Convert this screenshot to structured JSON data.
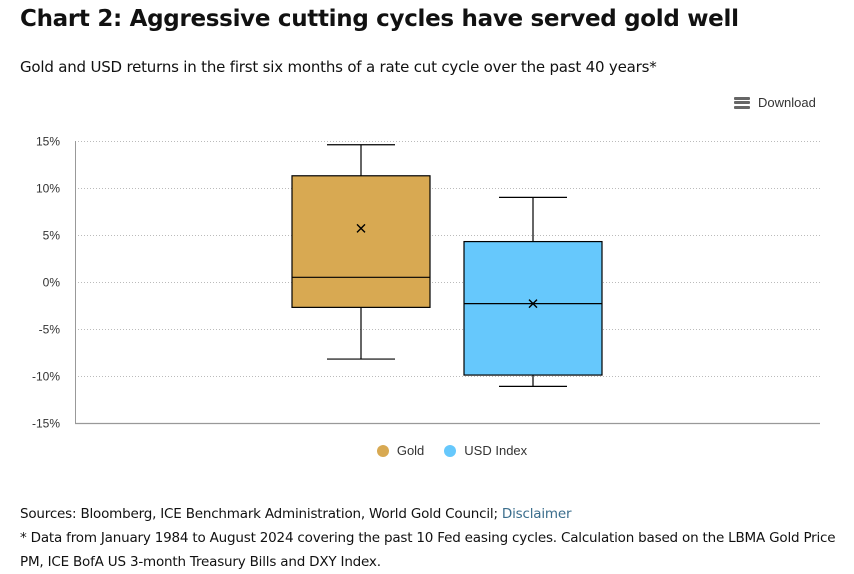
{
  "header": {
    "title": "Chart 2: Aggressive cutting cycles have served gold well",
    "subtitle": "Gold and USD returns in the first six months of a rate cut cycle over the past 40 years*"
  },
  "toolbar": {
    "download_label": "Download",
    "download_icon": "menu-icon"
  },
  "footer": {
    "sources_prefix": "Sources: Bloomberg, ICE Benchmark Administration, World Gold Council; ",
    "disclaimer_link": "Disclaimer",
    "note": "* Data from January 1984 to August 2024 covering the past 10 Fed easing cycles. Calculation based on the LBMA Gold Price PM, ICE BofA US 3-month Treasury Bills and DXY Index."
  },
  "chart_data": {
    "type": "boxplot",
    "title": "Chart 2: Aggressive cutting cycles have served gold well",
    "subtitle": "Gold and USD returns in the first six months of a rate cut cycle over the past 40 years*",
    "xlabel": "",
    "ylabel": "",
    "ylim": [
      -15,
      15
    ],
    "yticks": [
      15,
      10,
      5,
      0,
      -5,
      -10,
      -15
    ],
    "ytick_labels": [
      "15%",
      "10%",
      "5%",
      "0%",
      "-5%",
      "-10%",
      "-15%"
    ],
    "grid": true,
    "legend_position": "bottom-center",
    "series": [
      {
        "name": "Gold",
        "color": "#D8A952",
        "min": -8.2,
        "q1": -2.7,
        "median": 0.5,
        "q3": 11.3,
        "max": 14.6,
        "mean": 5.7
      },
      {
        "name": "USD Index",
        "color": "#66C8FC",
        "min": -11.1,
        "q1": -9.9,
        "median": -2.3,
        "q3": 4.3,
        "max": 9.0,
        "mean": -2.3
      }
    ]
  }
}
